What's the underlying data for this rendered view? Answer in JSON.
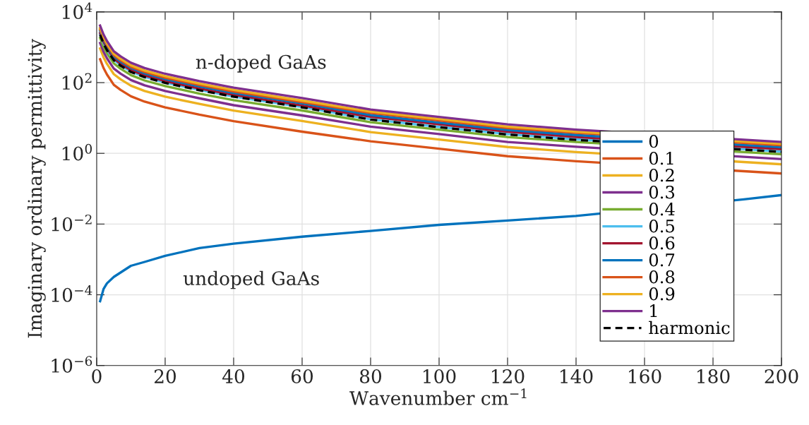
{
  "chart_data": {
    "type": "line",
    "xlabel": "Wavenumber cm$^{−1}$",
    "ylabel": "Imaginary ordinary permittivity",
    "log": "y",
    "grid": true,
    "legend": "bottom right",
    "line_style": "solid",
    "marker": "none",
    "xlim": [
      0,
      200
    ],
    "xticks": [
      0,
      20,
      40,
      60,
      80,
      100,
      120,
      140,
      160,
      180,
      200
    ],
    "ylim": [
      1e-06,
      10000
    ],
    "yticks": [
      {
        "value": 1e-06,
        "label": "10$^{−6}$"
      },
      {
        "value": 0.0001,
        "label": "10$^{−4}$"
      },
      {
        "value": 0.01,
        "label": "10$^{−2}$"
      },
      {
        "value": 1,
        "label": "10$^{0}$"
      },
      {
        "value": 100,
        "label": "10$^{2}$"
      },
      {
        "value": 10000,
        "label": "10$^{4}$"
      }
    ],
    "annotations": [
      "n-doped GaAs",
      "undoped GaAs"
    ],
    "series": [
      {
        "name": "0",
        "color": "#0072bd",
        "x": [
          1,
          2,
          3,
          5,
          10,
          14,
          20,
          30,
          40,
          60,
          80,
          100,
          120,
          140,
          189,
          200
        ],
        "values": [
          6.6e-05,
          0.000145,
          0.00021,
          0.00032,
          0.00066,
          0.00085,
          0.00126,
          0.0021,
          0.0028,
          0.0044,
          0.0064,
          0.0095,
          0.0126,
          0.017,
          0.05,
          0.066
        ]
      },
      {
        "name": "0.1",
        "color": "#d95319",
        "x": [
          1,
          2,
          3,
          5,
          7,
          10,
          14,
          20,
          30,
          40,
          60,
          80,
          100,
          120,
          140,
          200
        ],
        "values": [
          460,
          260,
          170,
          87,
          62,
          41,
          29,
          20,
          12.4,
          8.1,
          4.1,
          2.2,
          1.35,
          0.83,
          0.6,
          0.27
        ]
      },
      {
        "name": "0.2",
        "color": "#edb120",
        "x": [
          1,
          2,
          3,
          5,
          7,
          10,
          14,
          20,
          30,
          40,
          60,
          80,
          100,
          120,
          140,
          200
        ],
        "values": [
          920,
          520,
          340,
          174,
          124,
          82,
          58,
          40,
          25,
          16.2,
          8.2,
          4.0,
          2.46,
          1.51,
          1.09,
          0.49
        ]
      },
      {
        "name": "0.3",
        "color": "#7e2f8e",
        "x": [
          1,
          2,
          3,
          5,
          7,
          10,
          14,
          20,
          30,
          40,
          60,
          80,
          100,
          120,
          140,
          200
        ],
        "values": [
          1320,
          750,
          490,
          250,
          179,
          118,
          84,
          58,
          36,
          23,
          11.8,
          5.7,
          3.5,
          2.1,
          1.54,
          0.69
        ]
      },
      {
        "name": "0.4",
        "color": "#77ac30",
        "x": [
          1,
          2,
          3,
          5,
          7,
          10,
          14,
          20,
          30,
          40,
          60,
          80,
          100,
          120,
          140,
          200
        ],
        "values": [
          1830,
          1030,
          680,
          350,
          247,
          163,
          115,
          80,
          49,
          32,
          16.3,
          7.6,
          4.7,
          2.9,
          2.1,
          0.94
        ]
      },
      {
        "name": "0.5",
        "color": "#4dbeee",
        "x": [
          1,
          2,
          3,
          5,
          7,
          10,
          14,
          20,
          30,
          40,
          60,
          80,
          100,
          120,
          140,
          200
        ],
        "values": [
          2300,
          1300,
          850,
          440,
          310,
          205,
          145,
          100,
          62,
          40,
          20.5,
          9.2,
          5.6,
          3.5,
          2.5,
          1.13
        ]
      },
      {
        "name": "0.6",
        "color": "#a2142f",
        "x": [
          1,
          2,
          3,
          5,
          7,
          10,
          14,
          20,
          30,
          40,
          60,
          80,
          100,
          120,
          140,
          200
        ],
        "values": [
          2500,
          1430,
          940,
          480,
          340,
          225,
          160,
          110,
          68,
          45,
          22.5,
          10.8,
          6.6,
          4.1,
          2.9,
          1.32
        ]
      },
      {
        "name": "0.7",
        "color": "#0072bd",
        "x": [
          1,
          2,
          3,
          5,
          7,
          10,
          14,
          20,
          30,
          40,
          60,
          80,
          100,
          120,
          140,
          200
        ],
        "values": [
          2900,
          1640,
          1070,
          550,
          390,
          260,
          183,
          126,
          78,
          51,
          26,
          12.1,
          7.4,
          4.6,
          3.3,
          1.49
        ]
      },
      {
        "name": "0.8",
        "color": "#d95319",
        "x": [
          1,
          2,
          3,
          5,
          7,
          10,
          14,
          20,
          30,
          40,
          60,
          80,
          100,
          120,
          140,
          200
        ],
        "values": [
          3200,
          1800,
          1170,
          600,
          430,
          280,
          200,
          138,
          86,
          56,
          28,
          13.9,
          8.5,
          5.2,
          3.8,
          1.7
        ]
      },
      {
        "name": "0.9",
        "color": "#edb120",
        "x": [
          1,
          2,
          3,
          5,
          7,
          10,
          14,
          20,
          30,
          40,
          60,
          80,
          100,
          120,
          140,
          200
        ],
        "values": [
          3500,
          2000,
          1290,
          660,
          470,
          310,
          220,
          152,
          94,
          62,
          31,
          15.2,
          9.3,
          5.7,
          4.1,
          1.86
        ]
      },
      {
        "name": "1",
        "color": "#7e2f8e",
        "x": [
          1,
          2,
          3,
          5,
          7,
          10,
          14,
          20,
          30,
          40,
          60,
          80,
          100,
          120,
          140,
          200
        ],
        "values": [
          4100,
          2300,
          1510,
          770,
          550,
          365,
          258,
          178,
          110,
          72,
          36.5,
          17.4,
          10.7,
          6.6,
          4.7,
          2.1
        ]
      },
      {
        "name": "harmonic",
        "color": "#000000",
        "line_style": "dashed",
        "x": [
          1,
          2,
          3,
          5,
          7,
          10,
          14,
          20,
          30,
          40,
          60,
          80,
          100,
          120,
          140,
          200
        ],
        "values": [
          2250,
          1270,
          830,
          430,
          300,
          200,
          142,
          98,
          61,
          40,
          20,
          9.0,
          5.5,
          3.4,
          2.4,
          1.1
        ]
      }
    ]
  }
}
